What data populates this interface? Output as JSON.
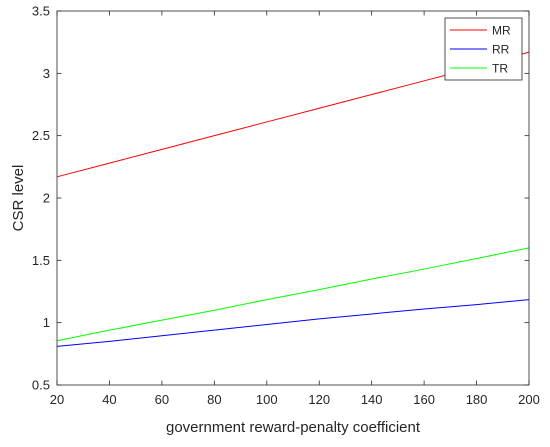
{
  "chart_data": {
    "type": "line",
    "title": "",
    "xlabel": "government reward-penalty coefficient",
    "ylabel": "CSR level",
    "xlim": [
      20,
      200
    ],
    "ylim": [
      0.5,
      3.5
    ],
    "xticks": [
      20,
      40,
      60,
      80,
      100,
      120,
      140,
      160,
      180,
      200
    ],
    "yticks": [
      0.5,
      1,
      1.5,
      2,
      2.5,
      3,
      3.5
    ],
    "xtick_labels": [
      "20",
      "40",
      "60",
      "80",
      "100",
      "120",
      "140",
      "160",
      "180",
      "200"
    ],
    "ytick_labels": [
      "0.5",
      "1",
      "1.5",
      "2",
      "2.5",
      "3",
      "3.5"
    ],
    "grid": false,
    "legend_position": "top-right",
    "x": [
      20,
      40,
      60,
      80,
      100,
      120,
      140,
      160,
      180,
      200
    ],
    "series": [
      {
        "name": "MR",
        "color": "#ff0000",
        "values": [
          2.17,
          2.28,
          2.39,
          2.5,
          2.61,
          2.72,
          2.83,
          2.94,
          3.05,
          3.17
        ]
      },
      {
        "name": "RR",
        "color": "#0000ff",
        "values": [
          0.81,
          0.85,
          0.895,
          0.94,
          0.985,
          1.03,
          1.07,
          1.11,
          1.145,
          1.185
        ]
      },
      {
        "name": "TR",
        "color": "#00ff00",
        "values": [
          0.855,
          0.94,
          1.02,
          1.1,
          1.185,
          1.265,
          1.35,
          1.43,
          1.515,
          1.6
        ]
      }
    ]
  }
}
